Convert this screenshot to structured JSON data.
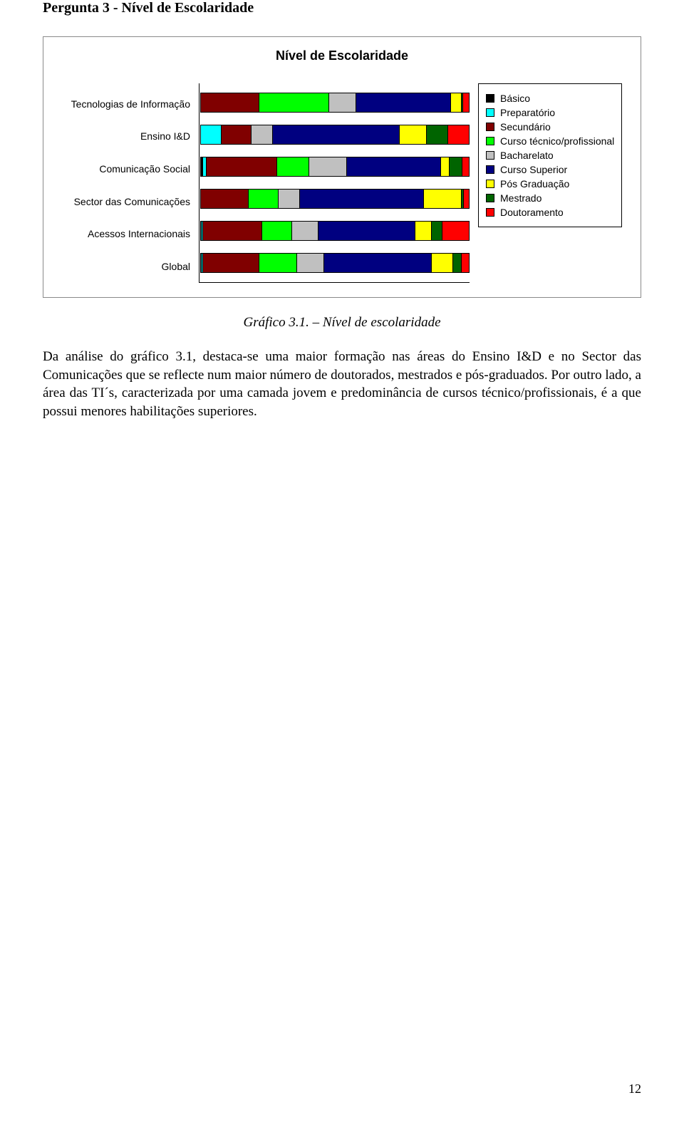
{
  "heading": "Pergunta 3 - Nível de Escolaridade",
  "chart": {
    "title": "Nível de Escolaridade",
    "categories": [
      "Tecnologias de Informação",
      "Ensino I&D",
      "Comunicação Social",
      "Sector das Comunicações",
      "Acessos Internacionais",
      "Global"
    ],
    "colors": {
      "basico": "#000000",
      "preparatorio": "#00ffff",
      "secundario": "#800000",
      "curso_tecnico": "#00ff00",
      "bacharelato": "#c0c0c0",
      "curso_superior": "#000080",
      "pos_graduacao": "#ffff00",
      "mestrado": "#006400",
      "doutoramento": "#ff0000"
    },
    "legend": [
      {
        "key": "basico",
        "label": "Básico"
      },
      {
        "key": "preparatorio",
        "label": "Preparatório"
      },
      {
        "key": "secundario",
        "label": "Secundário"
      },
      {
        "key": "curso_tecnico",
        "label": "Curso técnico/profissional"
      },
      {
        "key": "bacharelato",
        "label": "Bacharelato"
      },
      {
        "key": "curso_superior",
        "label": "Curso Superior"
      },
      {
        "key": "pos_graduacao",
        "label": "Pós Graduação"
      },
      {
        "key": "mestrado",
        "label": "Mestrado"
      },
      {
        "key": "doutoramento",
        "label": "Doutoramento"
      }
    ],
    "series": [
      [
        0,
        0,
        22,
        26,
        10,
        35,
        4,
        0.5,
        2.5
      ],
      [
        0,
        8,
        11,
        0,
        8,
        47,
        10,
        8,
        8
      ],
      [
        1,
        1.5,
        26,
        12,
        14,
        35,
        3,
        5,
        2.5
      ],
      [
        0,
        0,
        18,
        11,
        8,
        46,
        14,
        1,
        2
      ],
      [
        0.5,
        0.5,
        22,
        11,
        10,
        36,
        6,
        4,
        10
      ],
      [
        0.5,
        0.5,
        21,
        14,
        10,
        40,
        8,
        3,
        3
      ]
    ]
  },
  "caption": "Gráfico 3.1. – Nível de escolaridade",
  "body": "Da análise do gráfico 3.1, destaca-se uma maior formação nas áreas do Ensino I&D e no Sector das Comunicações que se reflecte num maior número de doutorados, mestrados e pós-graduados. Por outro lado, a área das TI´s, caracterizada por uma camada jovem e predominância de cursos técnico/profissionais, é a que possui menores habilitações superiores.",
  "page_number": "12"
}
